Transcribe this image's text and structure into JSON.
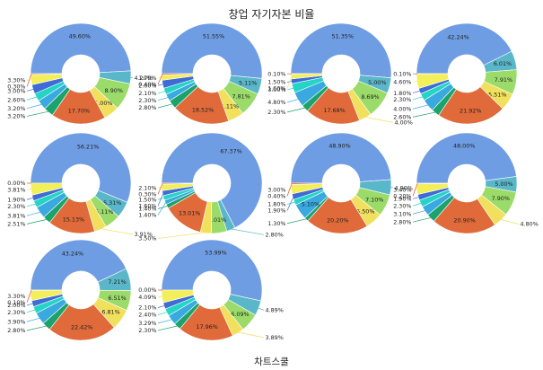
{
  "title": "창업 자기자본 비율",
  "footer_label": "차트스쿨",
  "colors": [
    "#6f9de3",
    "#5ab7c9",
    "#9bdb6a",
    "#f1e05c",
    "#e06a3a",
    "#1aa36b",
    "#3aa9e0",
    "#24d4c4",
    "#3f6bd6",
    "#f3ef5a",
    "#ee4a2d"
  ],
  "chart_data": [
    {
      "type": "pie",
      "values": [
        49.6,
        4.2,
        8.9,
        5.0,
        17.7,
        3.2,
        3.2,
        2.6,
        3.0,
        3.3,
        0.3
      ]
    },
    {
      "type": "pie",
      "values": [
        51.55,
        5.11,
        7.81,
        5.11,
        18.52,
        2.8,
        2.3,
        2.1,
        2.6,
        1.7,
        0.4
      ]
    },
    {
      "type": "pie",
      "values": [
        51.35,
        5.0,
        8.69,
        4.0,
        17.68,
        2.3,
        4.8,
        3.0,
        1.5,
        1.6,
        0.1
      ]
    },
    {
      "type": "pie",
      "values": [
        42.24,
        6.01,
        7.91,
        5.51,
        21.92,
        2.6,
        4.0,
        2.3,
        1.8,
        4.6,
        0.1
      ]
    },
    {
      "type": "pie",
      "values": [
        56.21,
        5.31,
        5.11,
        3.91,
        15.13,
        2.51,
        3.81,
        2.3,
        1.9,
        3.81,
        0.0
      ]
    },
    {
      "type": "pie",
      "values": [
        67.37,
        2.8,
        5.01,
        3.5,
        13.01,
        1.4,
        1.4,
        1.5,
        1.6,
        2.1,
        0.3
      ]
    },
    {
      "type": "pie",
      "values": [
        48.9,
        4.9,
        7.1,
        5.5,
        20.2,
        1.3,
        5.1,
        1.8,
        1.9,
        3.0,
        0.4
      ]
    },
    {
      "type": "pie",
      "values": [
        48.0,
        5.0,
        7.9,
        4.8,
        20.9,
        2.8,
        3.1,
        2.3,
        1.9,
        3.4,
        0.2
      ]
    },
    {
      "type": "pie",
      "values": [
        43.24,
        7.21,
        6.51,
        6.81,
        22.42,
        2.8,
        3.9,
        2.3,
        2.0,
        3.3,
        0.1
      ]
    },
    {
      "type": "pie",
      "values": [
        53.99,
        4.89,
        6.09,
        3.89,
        17.96,
        2.3,
        3.29,
        2.4,
        2.1,
        4.09,
        0.0
      ]
    }
  ]
}
